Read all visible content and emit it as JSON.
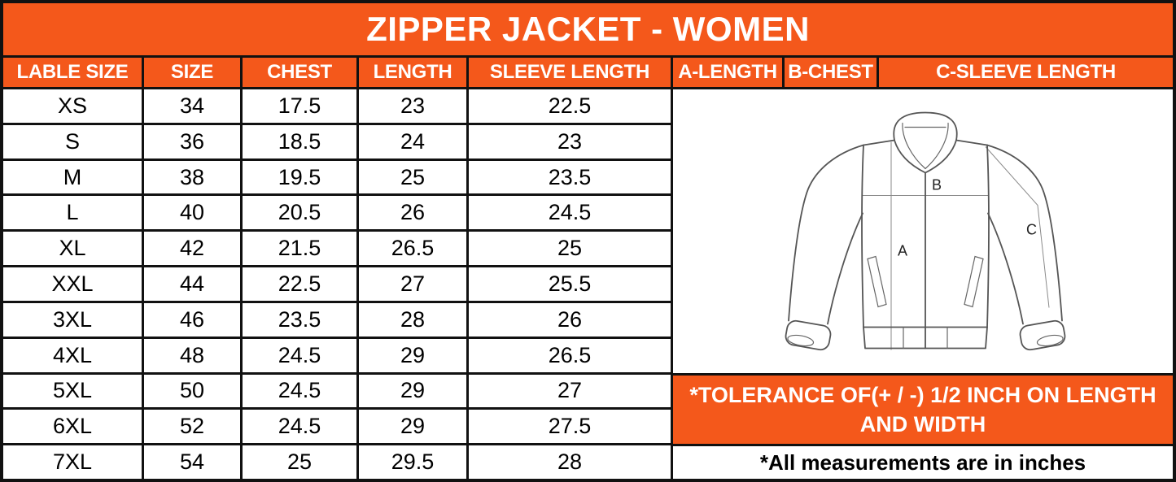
{
  "title": "ZIPPER JACKET - WOMEN",
  "colors": {
    "accent_orange": "#F4581B",
    "grid_black": "#111111",
    "header_text": "#FFFFFF",
    "body_text": "#000000"
  },
  "size_table": {
    "headers": [
      "LABLE SIZE",
      "SIZE",
      "CHEST",
      "LENGTH",
      "SLEEVE LENGTH"
    ],
    "rows": [
      [
        "XS",
        "34",
        "17.5",
        "23",
        "22.5"
      ],
      [
        "S",
        "36",
        "18.5",
        "24",
        "23"
      ],
      [
        "M",
        "38",
        "19.5",
        "25",
        "23.5"
      ],
      [
        "L",
        "40",
        "20.5",
        "26",
        "24.5"
      ],
      [
        "XL",
        "42",
        "21.5",
        "26.5",
        "25"
      ],
      [
        "XXL",
        "44",
        "22.5",
        "27",
        "25.5"
      ],
      [
        "3XL",
        "46",
        "23.5",
        "28",
        "26"
      ],
      [
        "4XL",
        "48",
        "24.5",
        "29",
        "26.5"
      ],
      [
        "5XL",
        "50",
        "24.5",
        "29",
        "27"
      ],
      [
        "6XL",
        "52",
        "24.5",
        "29",
        "27.5"
      ],
      [
        "7XL",
        "54",
        "25",
        "29.5",
        "28"
      ]
    ]
  },
  "diagram_legend": {
    "headers": [
      "A-LENGTH",
      "B-CHEST",
      "C-SLEEVE LENGTH"
    ],
    "labels": {
      "a": "A",
      "b": "B",
      "c": "C"
    }
  },
  "notes": {
    "tolerance_line1": "*TOLERANCE OF(+ / -) 1/2 INCH ON LENGTH",
    "tolerance_line2": "AND WIDTH",
    "measurements": "*All measurements are in inches"
  }
}
